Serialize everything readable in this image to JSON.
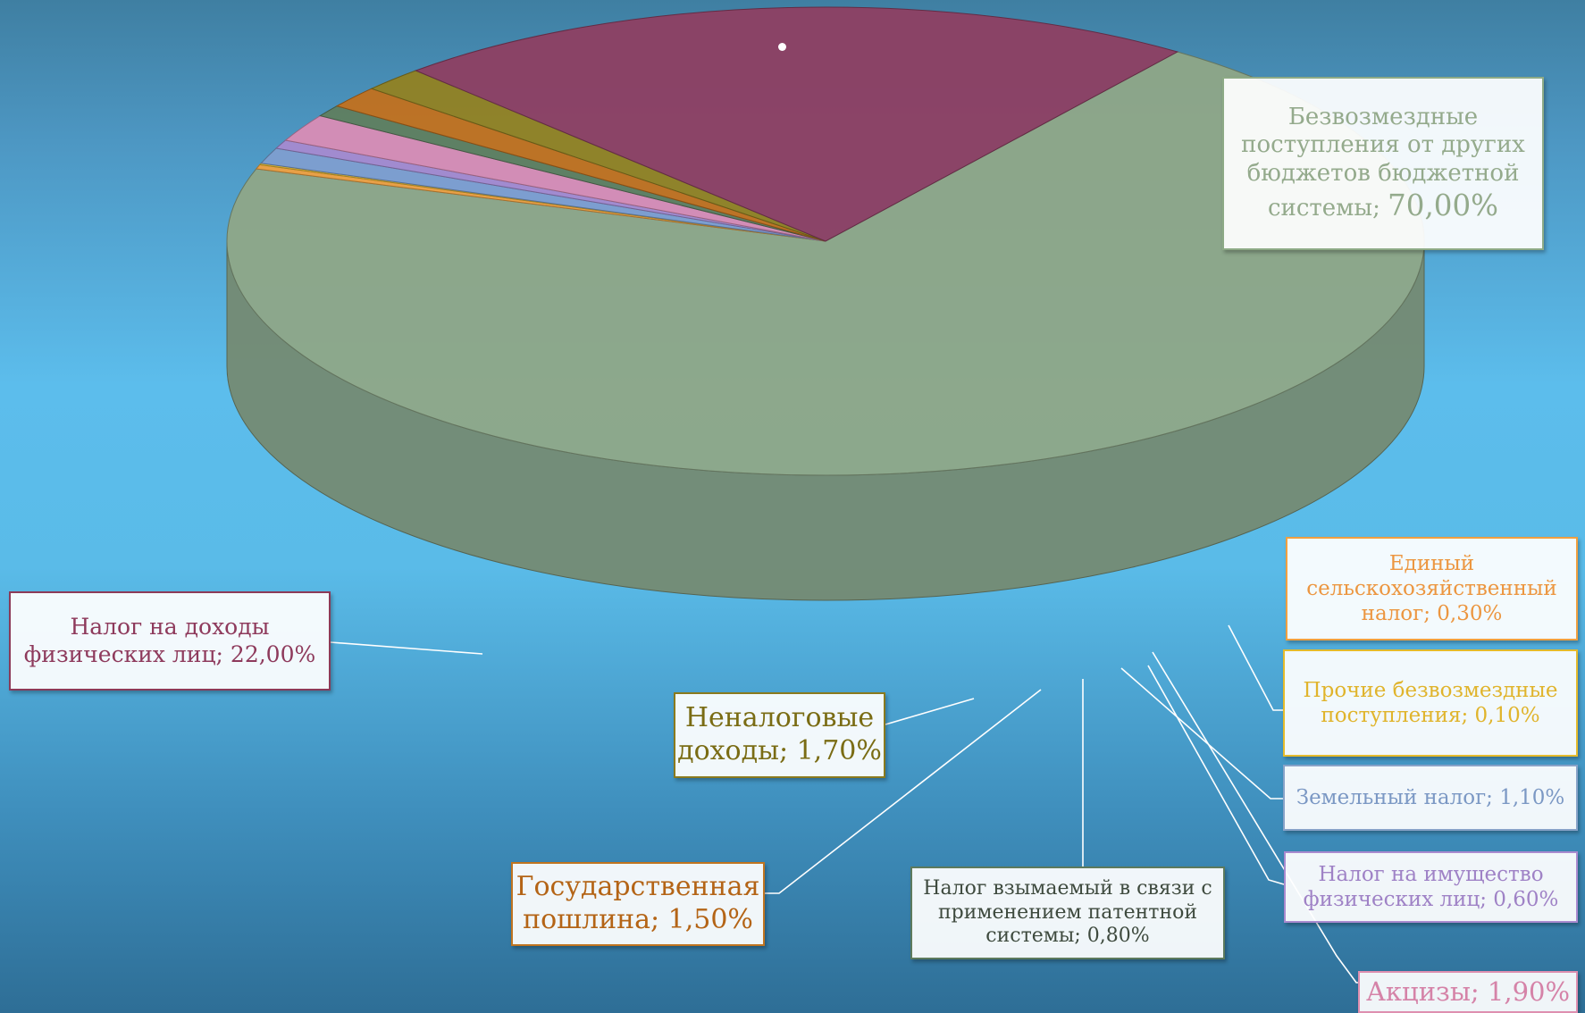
{
  "chart_data": {
    "type": "pie",
    "title": "",
    "series": [
      {
        "name": "Безвозмездные поступления от других бюджетов бюджетной системы",
        "value": 70.0,
        "label": "70,00%",
        "color": "#8fa787"
      },
      {
        "name": "Единый сельскохозяйственный налог",
        "value": 0.3,
        "label": "0,30%",
        "color": "#f0a040"
      },
      {
        "name": "Прочие безвозмездные поступления",
        "value": 0.1,
        "label": "0,10%",
        "color": "#e8bc30"
      },
      {
        "name": "Земельный налог",
        "value": 1.1,
        "label": "1,10%",
        "color": "#7e9ed0"
      },
      {
        "name": "Налог на имущество физических лиц",
        "value": 0.6,
        "label": "0,60%",
        "color": "#a58ad0"
      },
      {
        "name": "Акцизы",
        "value": 1.9,
        "label": "1,90%",
        "color": "#d98cb5"
      },
      {
        "name": "Налог взымаемый в связи с применением патентной системы",
        "value": 0.8,
        "label": "0,80%",
        "color": "#5f7e5f"
      },
      {
        "name": "Государственная пошлина",
        "value": 1.5,
        "label": "1,50%",
        "color": "#c2711e"
      },
      {
        "name": "Неналоговые доходы",
        "value": 1.7,
        "label": "1,70%",
        "color": "#928222"
      },
      {
        "name": "Налог на доходы физических лиц",
        "value": 22.0,
        "label": "22,00%",
        "color": "#8e3f62"
      }
    ]
  },
  "labels": {
    "l0": {
      "line1": "Безвозмездные",
      "line2": "поступления от других",
      "line3": "бюджетов бюджетной",
      "line4a": "системы; ",
      "pct": "70,00%"
    },
    "l1": {
      "line1": "Единый",
      "line2": "сельскохозяйственный",
      "line3": "налог; 0,30%"
    },
    "l2": {
      "line1": "Прочие безвозмездные",
      "line2": "поступления; 0,10%"
    },
    "l3": {
      "line1": "Земельный налог; 1,10%"
    },
    "l4": {
      "line1": "Налог на имущество",
      "line2": "физических лиц; 0,60%"
    },
    "l5": {
      "line1": "Акцизы; 1,90%"
    },
    "l6": {
      "line1": "Налог взымаемый в связи с",
      "line2": "применением патентной",
      "line3": "системы; 0,80%"
    },
    "l7": {
      "line1": "Государственная",
      "line2": "пошлина; 1,50%"
    },
    "l8": {
      "line1": "Неналоговые",
      "line2": "доходы; 1,70%"
    },
    "l9": {
      "line1": "Налог на доходы",
      "line2": "физических лиц; 22,00%"
    }
  }
}
